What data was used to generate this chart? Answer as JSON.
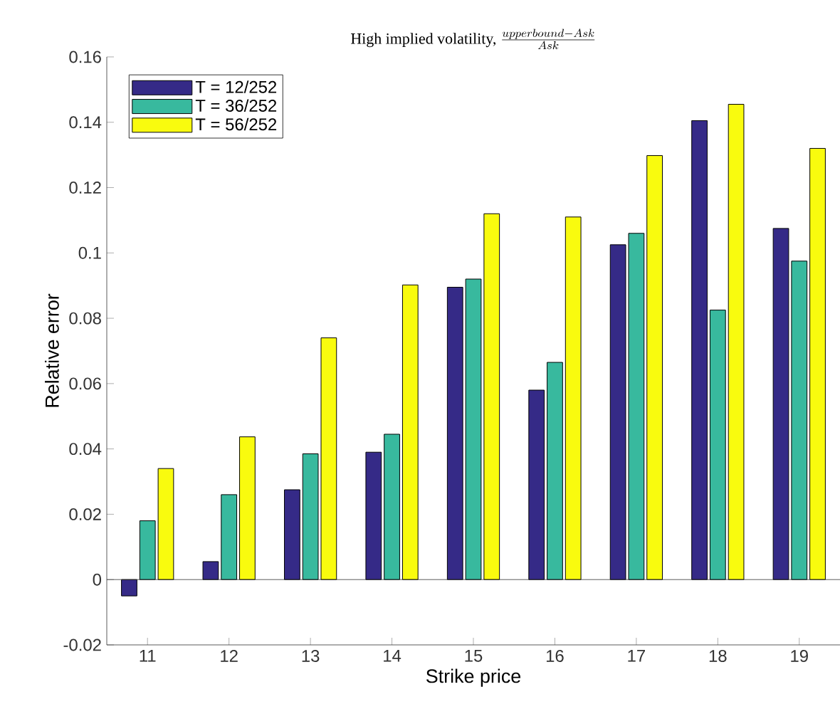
{
  "chart_data": {
    "type": "bar",
    "title": "High implied volatility,",
    "subtitle": "\\frac{upperbound-Ask}{Ask}",
    "xlabel": "Strike price",
    "ylabel": "Relative error",
    "categories": [
      "11",
      "12",
      "13",
      "14",
      "15",
      "16",
      "17",
      "18",
      "19"
    ],
    "series": [
      {
        "name": "T = 12/252",
        "color": "#352a87",
        "values": [
          -0.005,
          0.0055,
          0.0275,
          0.039,
          0.0895,
          0.058,
          0.1025,
          0.1405,
          0.1075
        ]
      },
      {
        "name": "T = 36/252",
        "color": "#38b99e",
        "values": [
          0.018,
          0.026,
          0.0385,
          0.0445,
          0.092,
          0.0665,
          0.106,
          0.0825,
          0.0975
        ]
      },
      {
        "name": "T = 56/252",
        "color": "#f9fb0e",
        "values": [
          0.034,
          0.0437,
          0.074,
          0.0902,
          0.112,
          0.111,
          0.1298,
          0.1455,
          0.132
        ]
      }
    ],
    "ylim": [
      -0.02,
      0.16
    ],
    "yticks": [
      -0.02,
      0,
      0.02,
      0.04,
      0.06,
      0.08,
      0.1,
      0.12,
      0.14,
      0.16
    ],
    "legend": "top left"
  }
}
